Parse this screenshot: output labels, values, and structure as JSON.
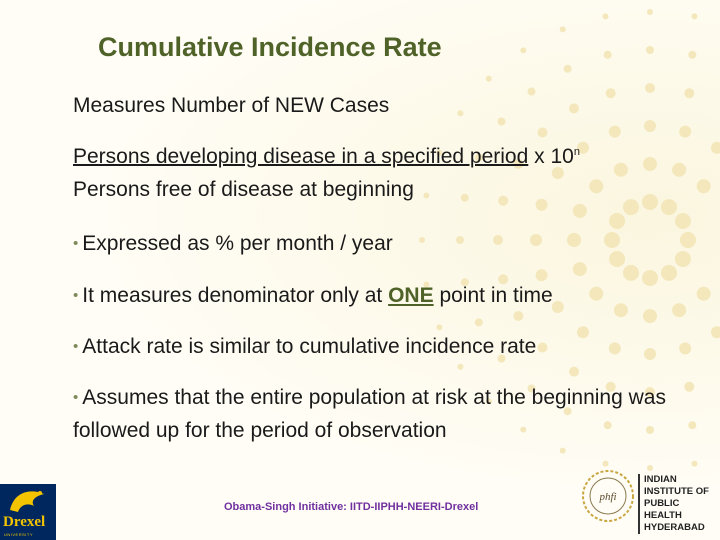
{
  "slide": {
    "title": "Cumulative Incidence Rate",
    "subtitle": "Measures Number of  NEW Cases",
    "numerator": "Persons developing disease in a specified period",
    "multiplier": " x 10",
    "exponent": "n",
    "denominator": "Persons free of disease at beginning",
    "bullet1": "Expressed as % per month / year",
    "bullet2_before": "It measures denominator only at ",
    "bullet2_emph": "ONE",
    "bullet2_after": " point in time",
    "bullet3": "Attack rate is similar to cumulative incidence rate",
    "bullet4": "Assumes that the entire population at risk at the beginning was followed up for the period of observation",
    "bullet_marker": "•"
  },
  "footer": {
    "text": "Obama-Singh Initiative: IITD-IIPHH-NEERI-Drexel"
  },
  "logos": {
    "drexel_word": "Drexel",
    "drexel_sub": "UNIVERSITY",
    "iiph_monogram": "phfi",
    "iiph_lines": [
      "INDIAN",
      "INSTITUTE OF",
      "PUBLIC HEALTH",
      "HYDERABAD"
    ]
  },
  "colors": {
    "title": "#4f6228",
    "footer": "#7030a0",
    "drexel_blue": "#00285e",
    "drexel_gold": "#f5c400"
  }
}
